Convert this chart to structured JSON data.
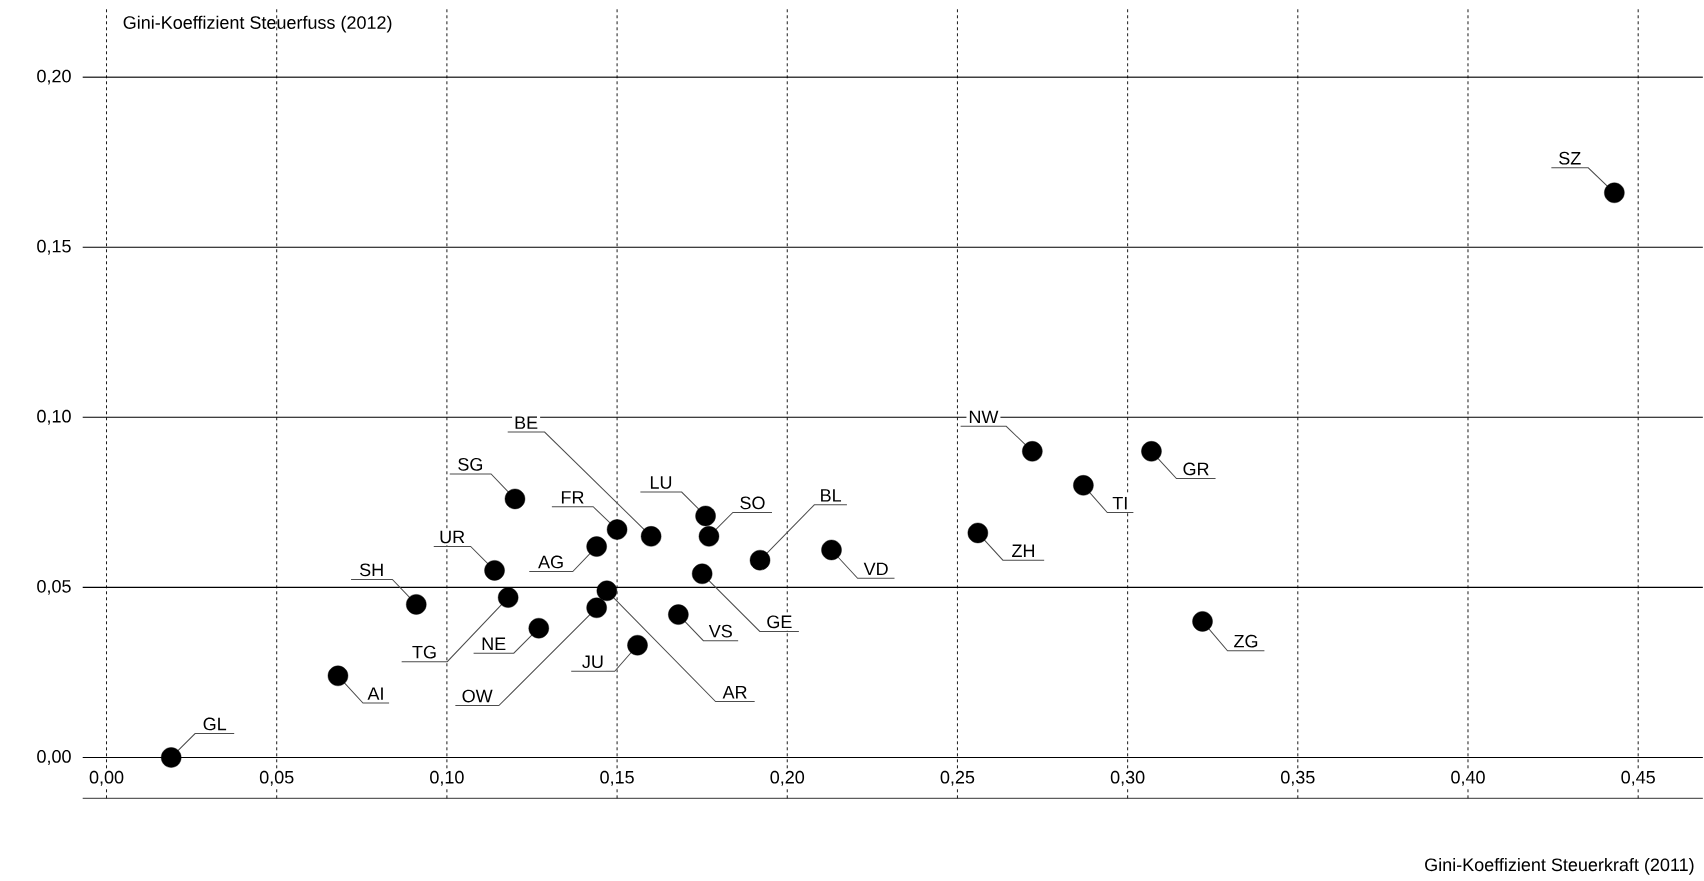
{
  "chart_data": {
    "type": "scatter",
    "xlabel": "Gini-Koeffizient Steuerkraft (2011)",
    "ylabel": "Gini-Koeffizient Steuerfuss (2012)",
    "x": [
      0.019,
      0.068,
      0.091,
      0.114,
      0.118,
      0.127,
      0.12,
      0.144,
      0.147,
      0.156,
      0.144,
      0.15,
      0.16,
      0.168,
      0.176,
      0.177,
      0.175,
      0.192,
      0.213,
      0.256,
      0.272,
      0.287,
      0.307,
      0.322,
      0.443
    ],
    "values": [
      0.0,
      0.024,
      0.045,
      0.055,
      0.047,
      0.038,
      0.076,
      0.044,
      0.049,
      0.033,
      0.062,
      0.067,
      0.065,
      0.042,
      0.071,
      0.065,
      0.054,
      0.058,
      0.061,
      0.066,
      0.09,
      0.08,
      0.09,
      0.04,
      0.166
    ],
    "color": "#000000",
    "marker": "circle",
    "grid": true,
    "xlim": [
      -0.007,
      0.469
    ],
    "ylim": [
      -0.012,
      0.22
    ],
    "xticks": [
      {
        "value": 0,
        "label": "0,00"
      },
      {
        "value": 0.05,
        "label": "0,05"
      },
      {
        "value": 0.1,
        "label": "0,10"
      },
      {
        "value": 0.15,
        "label": "0,15"
      },
      {
        "value": 0.2,
        "label": "0,20"
      },
      {
        "value": 0.25,
        "label": "0,25"
      },
      {
        "value": 0.3,
        "label": "0,30"
      },
      {
        "value": 0.35,
        "label": "0,35"
      },
      {
        "value": 0.4,
        "label": "0,40"
      },
      {
        "value": 0.45,
        "label": "0,45"
      }
    ],
    "yticks": [
      {
        "value": 0,
        "label": "0,00"
      },
      {
        "value": 0.05,
        "label": "0,05"
      },
      {
        "value": 0.1,
        "label": "0,10"
      },
      {
        "value": 0.15,
        "label": "0,15"
      },
      {
        "value": 0.2,
        "label": "0,20"
      }
    ],
    "annotations": [
      {
        "text": "GL",
        "x": 0.019,
        "y": 0.0
      },
      {
        "text": "AI",
        "x": 0.068,
        "y": 0.024
      },
      {
        "text": "SH",
        "x": 0.091,
        "y": 0.045
      },
      {
        "text": "UR",
        "x": 0.114,
        "y": 0.055
      },
      {
        "text": "TG",
        "x": 0.118,
        "y": 0.047
      },
      {
        "text": "NE",
        "x": 0.127,
        "y": 0.038
      },
      {
        "text": "SG",
        "x": 0.12,
        "y": 0.076
      },
      {
        "text": "OW",
        "x": 0.144,
        "y": 0.044
      },
      {
        "text": "AR",
        "x": 0.147,
        "y": 0.049
      },
      {
        "text": "JU",
        "x": 0.156,
        "y": 0.033
      },
      {
        "text": "AG",
        "x": 0.144,
        "y": 0.062
      },
      {
        "text": "FR",
        "x": 0.15,
        "y": 0.067
      },
      {
        "text": "BE",
        "x": 0.16,
        "y": 0.065
      },
      {
        "text": "VS",
        "x": 0.168,
        "y": 0.042
      },
      {
        "text": "LU",
        "x": 0.176,
        "y": 0.071
      },
      {
        "text": "SO",
        "x": 0.177,
        "y": 0.065
      },
      {
        "text": "GE",
        "x": 0.175,
        "y": 0.054
      },
      {
        "text": "BL",
        "x": 0.192,
        "y": 0.058
      },
      {
        "text": "VD",
        "x": 0.213,
        "y": 0.061
      },
      {
        "text": "ZH",
        "x": 0.256,
        "y": 0.066
      },
      {
        "text": "NW",
        "x": 0.272,
        "y": 0.09
      },
      {
        "text": "TI",
        "x": 0.287,
        "y": 0.08
      },
      {
        "text": "GR",
        "x": 0.307,
        "y": 0.09
      },
      {
        "text": "ZG",
        "x": 0.322,
        "y": 0.04
      },
      {
        "text": "SZ",
        "x": 0.443,
        "y": 0.166
      }
    ]
  }
}
